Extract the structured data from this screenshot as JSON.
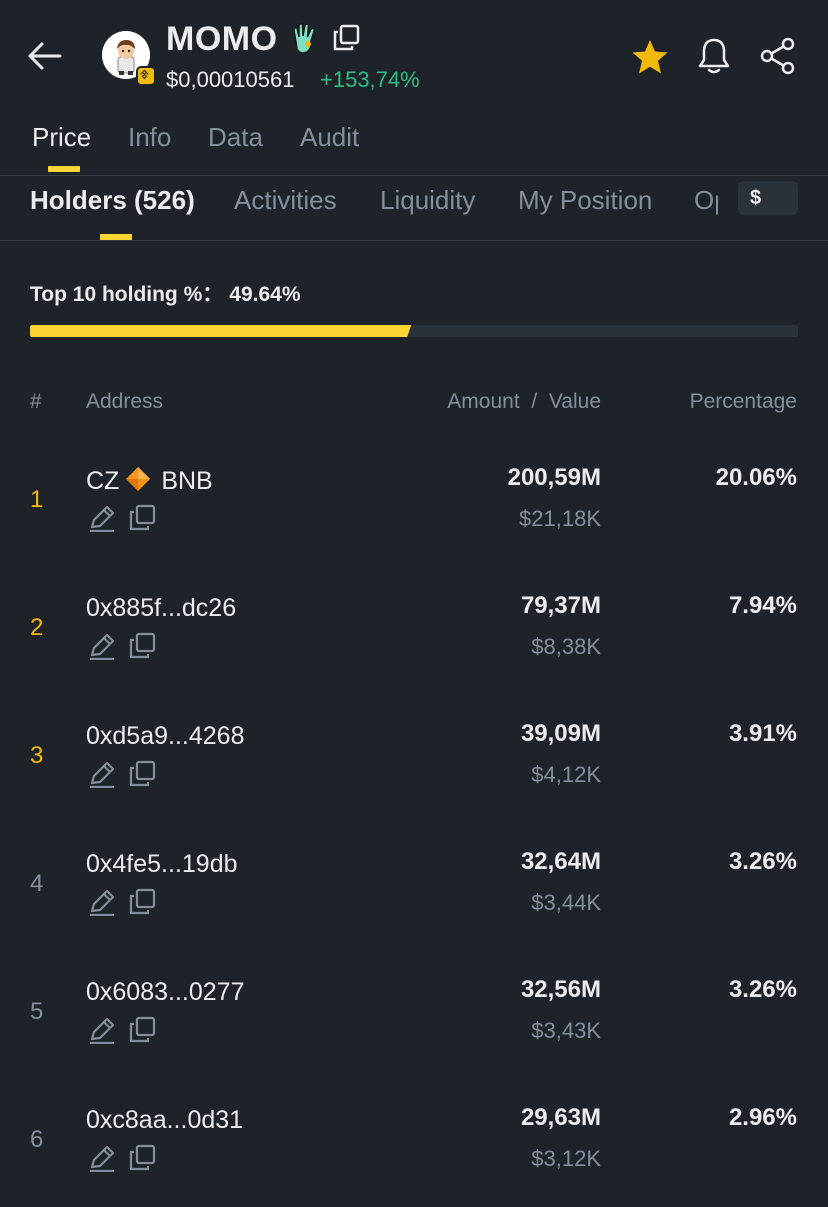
{
  "header": {
    "token_name": "MOMO",
    "price": "$0,00010561",
    "change": "+153,74%",
    "icons": {
      "back": "arrow-left-icon",
      "avatar": "token-avatar",
      "chain": "bnb-chain-badge",
      "hand": "hand-emoji-icon",
      "copy": "copy-icon",
      "favorite": "star-icon",
      "alert": "bell-icon",
      "share": "share-icon"
    },
    "colors": {
      "accent": "#fcd535",
      "positive": "#2ebd85",
      "background": "#1e2329"
    }
  },
  "main_tabs": [
    {
      "label": "Price",
      "active": true
    },
    {
      "label": "Info",
      "active": false
    },
    {
      "label": "Data",
      "active": false
    },
    {
      "label": "Audit",
      "active": false
    }
  ],
  "sub_tabs": [
    {
      "label": "Holders (526)",
      "active": true
    },
    {
      "label": "Activities",
      "active": false
    },
    {
      "label": "Liquidity",
      "active": false
    },
    {
      "label": "My Position",
      "active": false
    },
    {
      "label": "Op",
      "active": false
    }
  ],
  "currency_toggle": "$",
  "summary": {
    "label": "Top 10 holding %：",
    "value": "49.64%",
    "fraction": 0.4964
  },
  "table": {
    "columns": {
      "rank": "#",
      "address": "Address",
      "amount_value": "Amount  /  Value",
      "percentage": "Percentage"
    },
    "rows": [
      {
        "rank": "1",
        "address": "CZ",
        "tag": "BNB",
        "amount": "200,59M",
        "value": "$21,18K",
        "percentage": "20.06%"
      },
      {
        "rank": "2",
        "address": "0x885f...dc26",
        "amount": "79,37M",
        "value": "$8,38K",
        "percentage": "7.94%"
      },
      {
        "rank": "3",
        "address": "0xd5a9...4268",
        "amount": "39,09M",
        "value": "$4,12K",
        "percentage": "3.91%"
      },
      {
        "rank": "4",
        "address": "0x4fe5...19db",
        "amount": "32,64M",
        "value": "$3,44K",
        "percentage": "3.26%"
      },
      {
        "rank": "5",
        "address": "0x6083...0277",
        "amount": "32,56M",
        "value": "$3,43K",
        "percentage": "3.26%"
      },
      {
        "rank": "6",
        "address": "0xc8aa...0d31",
        "amount": "29,63M",
        "value": "$3,12K",
        "percentage": "2.96%"
      }
    ]
  }
}
